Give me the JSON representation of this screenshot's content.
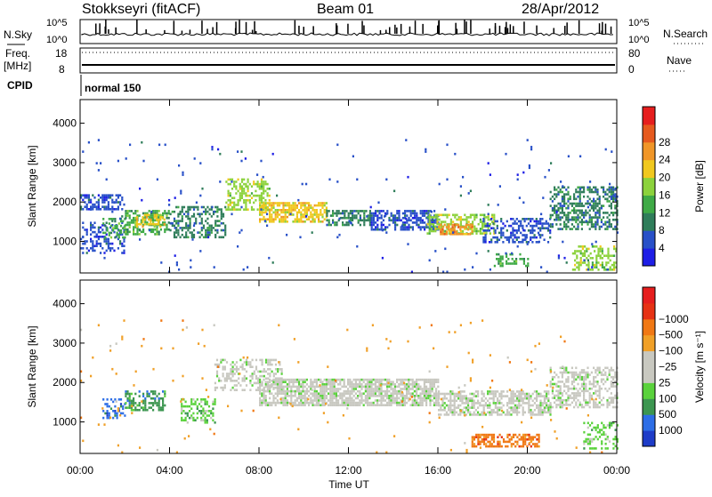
{
  "header": {
    "station": "Stokkseyri (fitACF)",
    "beam": "Beam 01",
    "date": "28/Apr/2012"
  },
  "noise_panel": {
    "left_label": "N.Sky",
    "right_label": "N.Search",
    "left_ticks": [
      "10^5",
      "10^0"
    ],
    "right_ticks": [
      "10^5",
      "10^0"
    ]
  },
  "freq_panel": {
    "left_label_1": "Freq.",
    "left_label_2": "[MHz]",
    "right_label": "Nave",
    "left_ticks": [
      "18",
      "8"
    ],
    "right_ticks": [
      "80",
      "0"
    ]
  },
  "cpid": {
    "label": "CPID",
    "mode": "normal 150"
  },
  "chart_data": [
    {
      "type": "heatmap",
      "name": "power",
      "ylabel": "Slant Range [km]",
      "yticks": [
        "1000",
        "2000",
        "3000",
        "4000"
      ],
      "ylim": [
        200,
        4600
      ],
      "xlim": [
        0,
        24
      ],
      "colorbar_label": "Power [dB]",
      "colorbar_ticks": [
        "4",
        "8",
        "12",
        "16",
        "20",
        "24",
        "28"
      ],
      "colorbar_colors": [
        "#1e1ee6",
        "#2850c8",
        "#2f7d5a",
        "#3faa46",
        "#8cd23c",
        "#f0c81e",
        "#f09628",
        "#e65a1e",
        "#e61e1e"
      ],
      "bands": [
        {
          "t0": 0.0,
          "t1": 2.0,
          "r0": 1800,
          "r1": 2200,
          "level": 1,
          "density": 0.55
        },
        {
          "t0": 0.0,
          "t1": 2.0,
          "r0": 700,
          "r1": 1500,
          "level": 1,
          "density": 0.35
        },
        {
          "t0": 1.0,
          "t1": 2.0,
          "r0": 1100,
          "r1": 1600,
          "level": 3,
          "density": 0.4
        },
        {
          "t0": 2.0,
          "t1": 4.0,
          "r0": 1200,
          "r1": 1800,
          "level": 3,
          "density": 0.55
        },
        {
          "t0": 2.5,
          "t1": 3.8,
          "r0": 1400,
          "r1": 1700,
          "level": 5,
          "density": 0.5
        },
        {
          "t0": 4.0,
          "t1": 6.5,
          "r0": 1100,
          "r1": 1900,
          "level": 2,
          "density": 0.45
        },
        {
          "t0": 6.5,
          "t1": 8.5,
          "r0": 1800,
          "r1": 2600,
          "level": 4,
          "density": 0.5
        },
        {
          "t0": 8.0,
          "t1": 11.0,
          "r0": 1500,
          "r1": 2000,
          "level": 5,
          "density": 0.7
        },
        {
          "t0": 11.0,
          "t1": 13.0,
          "r0": 1400,
          "r1": 1800,
          "level": 2,
          "density": 0.55
        },
        {
          "t0": 13.0,
          "t1": 16.0,
          "r0": 1300,
          "r1": 1800,
          "level": 1,
          "density": 0.6
        },
        {
          "t0": 15.5,
          "t1": 18.5,
          "r0": 1200,
          "r1": 1700,
          "level": 4,
          "density": 0.55
        },
        {
          "t0": 16.0,
          "t1": 17.5,
          "r0": 1200,
          "r1": 1450,
          "level": 6,
          "density": 0.6
        },
        {
          "t0": 18.0,
          "t1": 21.0,
          "r0": 1000,
          "r1": 1600,
          "level": 1,
          "density": 0.45
        },
        {
          "t0": 18.5,
          "t1": 20.0,
          "r0": 400,
          "r1": 700,
          "level": 3,
          "density": 0.4
        },
        {
          "t0": 21.0,
          "t1": 24.0,
          "r0": 1300,
          "r1": 2400,
          "level": 2,
          "density": 0.5
        },
        {
          "t0": 22.0,
          "t1": 24.0,
          "r0": 300,
          "r1": 900,
          "level": 4,
          "density": 0.45
        },
        {
          "t0": 0.0,
          "t1": 24.0,
          "r0": 200,
          "r1": 3600,
          "level": 1,
          "density": 0.012
        }
      ]
    },
    {
      "type": "heatmap",
      "name": "velocity",
      "ylabel": "Slant Range [km]",
      "yticks": [
        "1000",
        "2000",
        "3000",
        "4000"
      ],
      "ylim": [
        200,
        4600
      ],
      "xlim": [
        0,
        24
      ],
      "xlabel": "Time UT",
      "xticks": [
        "00:00",
        "04:00",
        "08:00",
        "12:00",
        "16:00",
        "20:00",
        "00:00"
      ],
      "colorbar_label": "Velocity [m s⁻¹]",
      "colorbar_ticks": [
        "1000",
        "500",
        "100",
        "25",
        "−25",
        "−100",
        "−500",
        "−1000"
      ],
      "colorbar_colors": [
        "#1e3cc8",
        "#2d6ee6",
        "#3c9650",
        "#5ad23c",
        "#c8c8c0",
        "#c8c8c0",
        "#f0a028",
        "#f07814",
        "#e63214",
        "#e61e1e"
      ],
      "bands": [
        {
          "t0": 6.0,
          "t1": 9.0,
          "r0": 1800,
          "r1": 2600,
          "level": 4,
          "density": 0.4
        },
        {
          "t0": 8.0,
          "t1": 16.0,
          "r0": 1400,
          "r1": 2100,
          "level": 4,
          "density": 0.75
        },
        {
          "t0": 16.0,
          "t1": 21.0,
          "r0": 1200,
          "r1": 1800,
          "level": 4,
          "density": 0.6
        },
        {
          "t0": 21.0,
          "t1": 24.0,
          "r0": 1400,
          "r1": 2400,
          "level": 4,
          "density": 0.5
        },
        {
          "t0": 1.0,
          "t1": 2.0,
          "r0": 1100,
          "r1": 1600,
          "level": 1,
          "density": 0.4
        },
        {
          "t0": 2.0,
          "t1": 3.8,
          "r0": 1300,
          "r1": 1800,
          "level": 2,
          "density": 0.5
        },
        {
          "t0": 4.5,
          "t1": 6.0,
          "r0": 1000,
          "r1": 1600,
          "level": 3,
          "density": 0.45
        },
        {
          "t0": 17.5,
          "t1": 20.5,
          "r0": 350,
          "r1": 700,
          "level": 7,
          "density": 0.55
        },
        {
          "t0": 22.5,
          "t1": 24.0,
          "r0": 300,
          "r1": 1000,
          "level": 3,
          "density": 0.35
        },
        {
          "t0": 0.0,
          "t1": 24.0,
          "r0": 200,
          "r1": 3600,
          "level": 6,
          "density": 0.01
        }
      ]
    }
  ]
}
